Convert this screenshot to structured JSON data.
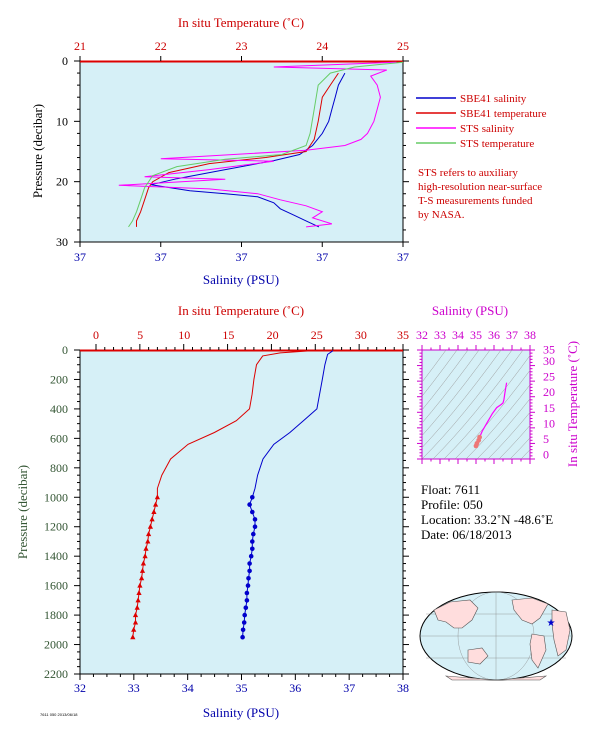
{
  "colors": {
    "plot_bg": "#d6f0f7",
    "salinity": "#0000cc",
    "temperature": "#dd0000",
    "sts_salinity": "#ff00ff",
    "sts_temperature": "#66cc66",
    "ts_axis": "#cc00cc",
    "pressure_axis": "#335533",
    "float_star": "#0000cc"
  },
  "info": {
    "float": "Float:  7611",
    "profile": "Profile:  050",
    "location": "Location:  33.2˚N  -48.6˚E",
    "date": "Date:  06/18/2013"
  },
  "note": [
    "STS refers to auxiliary",
    "high-resolution near-surface",
    "T-S measurements funded",
    "by NASA."
  ],
  "footer": "7611 050 2013/06/18",
  "chart_data": [
    {
      "id": "near-surface",
      "type": "line",
      "title": "In situ Temperature (˚C)",
      "xlabel": "Salinity (PSU)",
      "ylabel": "Pressure (decibar)",
      "top_xlabel": "In situ Temperature (˚C)",
      "top_ticks": [
        "21",
        "22",
        "23",
        "24",
        "25"
      ],
      "top_xlim": [
        21,
        25
      ],
      "bottom_ticks": [
        "37",
        "37",
        "37",
        "37",
        "37"
      ],
      "y_ticks": [
        "0",
        "10",
        "20",
        "30"
      ],
      "ylim": [
        0,
        30
      ],
      "grid": false,
      "legend_position": "right",
      "legend": [
        "SBE41 salinity",
        "SBE41 temperature",
        "STS salinity",
        "STS temperature"
      ],
      "series": [
        {
          "name": "SBE41 salinity",
          "axis": "bottom",
          "points": [
            [
              0.82,
              2
            ],
            [
              0.8,
              4
            ],
            [
              0.79,
              6
            ],
            [
              0.78,
              8
            ],
            [
              0.77,
              10
            ],
            [
              0.75,
              12
            ],
            [
              0.72,
              14
            ],
            [
              0.68,
              15.5
            ],
            [
              0.6,
              16.5
            ],
            [
              0.45,
              18
            ],
            [
              0.3,
              19.5
            ],
            [
              0.22,
              20.5
            ],
            [
              0.34,
              21.5
            ],
            [
              0.45,
              22
            ],
            [
              0.55,
              22.5
            ],
            [
              0.6,
              23.5
            ],
            [
              0.62,
              24.5
            ],
            [
              0.66,
              25.5
            ],
            [
              0.7,
              26.5
            ],
            [
              0.74,
              27.5
            ]
          ]
        },
        {
          "name": "SBE41 temperature",
          "axis": "top",
          "points": [
            [
              24.2,
              2
            ],
            [
              24.1,
              4
            ],
            [
              24.0,
              6
            ],
            [
              23.95,
              10
            ],
            [
              23.9,
              13
            ],
            [
              23.8,
              15
            ],
            [
              23.3,
              16
            ],
            [
              22.6,
              17
            ],
            [
              22.1,
              18.5
            ],
            [
              21.9,
              20
            ],
            [
              21.85,
              21
            ],
            [
              21.8,
              23
            ],
            [
              21.75,
              25
            ],
            [
              21.7,
              26.5
            ],
            [
              21.7,
              27.5
            ]
          ]
        },
        {
          "name": "STS salinity",
          "axis": "bottom",
          "points": [
            [
              0.98,
              0.2
            ],
            [
              0.6,
              1.0
            ],
            [
              0.95,
              1.5
            ],
            [
              0.9,
              2.5
            ],
            [
              0.92,
              4
            ],
            [
              0.93,
              6
            ],
            [
              0.92,
              8
            ],
            [
              0.91,
              10
            ],
            [
              0.9,
              11
            ],
            [
              0.89,
              12
            ],
            [
              0.87,
              13
            ],
            [
              0.82,
              14
            ],
            [
              0.7,
              14.8
            ],
            [
              0.25,
              16.2
            ],
            [
              0.6,
              16.6
            ],
            [
              0.4,
              18
            ],
            [
              0.2,
              19.2
            ],
            [
              0.45,
              19.6
            ],
            [
              0.12,
              20.6
            ],
            [
              0.4,
              21.2
            ],
            [
              0.55,
              22
            ],
            [
              0.62,
              23
            ],
            [
              0.7,
              24
            ],
            [
              0.75,
              25
            ],
            [
              0.72,
              26
            ],
            [
              0.78,
              27
            ],
            [
              0.7,
              27.5
            ]
          ]
        },
        {
          "name": "STS temperature",
          "axis": "top",
          "points": [
            [
              25.0,
              0.2
            ],
            [
              24.4,
              1
            ],
            [
              24.1,
              2
            ],
            [
              23.95,
              4
            ],
            [
              23.9,
              8
            ],
            [
              23.85,
              12
            ],
            [
              23.8,
              14
            ],
            [
              23.5,
              15.5
            ],
            [
              22.8,
              16.3
            ],
            [
              22.2,
              17.5
            ],
            [
              21.9,
              19
            ],
            [
              21.8,
              21
            ],
            [
              21.75,
              23
            ],
            [
              21.7,
              25
            ],
            [
              21.65,
              26.5
            ],
            [
              21.6,
              27.5
            ]
          ]
        }
      ]
    },
    {
      "id": "full-profile",
      "type": "line",
      "title": "In situ Temperature (˚C)",
      "xlabel": "Salinity (PSU)",
      "ylabel": "Pressure (decibar)",
      "top_xlabel": "In situ Temperature (˚C)",
      "top_ticks": [
        "0",
        "5",
        "10",
        "15",
        "20",
        "25",
        "30",
        "35"
      ],
      "top_xlim": [
        0,
        35
      ],
      "bottom_ticks": [
        "32",
        "33",
        "34",
        "35",
        "36",
        "37",
        "38"
      ],
      "xlim": [
        32,
        38
      ],
      "y_ticks": [
        "0",
        "200",
        "400",
        "600",
        "800",
        "1000",
        "1200",
        "1400",
        "1600",
        "1800",
        "2000",
        "2200"
      ],
      "ylim": [
        0,
        2200
      ],
      "grid": false,
      "series": [
        {
          "name": "Salinity",
          "axis": "bottom",
          "points": [
            [
              36.7,
              5
            ],
            [
              36.6,
              30
            ],
            [
              36.55,
              100
            ],
            [
              36.5,
              200
            ],
            [
              36.45,
              300
            ],
            [
              36.4,
              400
            ],
            [
              36.15,
              480
            ],
            [
              35.9,
              560
            ],
            [
              35.6,
              640
            ],
            [
              35.4,
              740
            ],
            [
              35.3,
              850
            ],
            [
              35.25,
              940
            ],
            [
              35.2,
              1000
            ],
            [
              35.15,
              1050
            ],
            [
              35.2,
              1100
            ],
            [
              35.25,
              1150
            ],
            [
              35.25,
              1200
            ],
            [
              35.22,
              1250
            ],
            [
              35.2,
              1300
            ],
            [
              35.2,
              1350
            ],
            [
              35.18,
              1400
            ],
            [
              35.15,
              1450
            ],
            [
              35.15,
              1500
            ],
            [
              35.13,
              1550
            ],
            [
              35.12,
              1600
            ],
            [
              35.1,
              1650
            ],
            [
              35.1,
              1700
            ],
            [
              35.08,
              1750
            ],
            [
              35.06,
              1800
            ],
            [
              35.05,
              1850
            ],
            [
              35.03,
              1900
            ],
            [
              35.02,
              1950
            ]
          ]
        },
        {
          "name": "Temperature",
          "axis": "top",
          "points": [
            [
              24.5,
              5
            ],
            [
              21.0,
              20
            ],
            [
              19.0,
              40
            ],
            [
              18.3,
              100
            ],
            [
              18.0,
              200
            ],
            [
              17.8,
              300
            ],
            [
              17.5,
              400
            ],
            [
              16.0,
              480
            ],
            [
              13.5,
              560
            ],
            [
              10.5,
              640
            ],
            [
              8.5,
              740
            ],
            [
              7.5,
              850
            ],
            [
              7.0,
              940
            ],
            [
              7.0,
              1000
            ],
            [
              6.8,
              1050
            ],
            [
              6.6,
              1100
            ],
            [
              6.4,
              1150
            ],
            [
              6.2,
              1200
            ],
            [
              6.0,
              1250
            ],
            [
              5.9,
              1300
            ],
            [
              5.7,
              1350
            ],
            [
              5.6,
              1400
            ],
            [
              5.4,
              1450
            ],
            [
              5.3,
              1500
            ],
            [
              5.2,
              1550
            ],
            [
              5.0,
              1600
            ],
            [
              4.9,
              1650
            ],
            [
              4.8,
              1700
            ],
            [
              4.7,
              1750
            ],
            [
              4.5,
              1800
            ],
            [
              4.5,
              1850
            ],
            [
              4.3,
              1900
            ],
            [
              4.2,
              1950
            ]
          ]
        }
      ]
    },
    {
      "id": "ts-diagram",
      "type": "line",
      "title": "Salinity (PSU)",
      "xlabel": "Salinity (PSU)",
      "ylabel": "In situ Temperature (˚C)",
      "x_ticks": [
        "32",
        "33",
        "34",
        "35",
        "36",
        "37",
        "38"
      ],
      "xlim": [
        32,
        38
      ],
      "y_ticks": [
        "0",
        "5",
        "10",
        "15",
        "20",
        "25",
        "30",
        "35"
      ],
      "ylim": [
        0,
        35
      ],
      "series": [
        {
          "name": "T-S",
          "points": [
            [
              35.0,
              4.2
            ],
            [
              35.05,
              5.0
            ],
            [
              35.15,
              6.0
            ],
            [
              35.2,
              7.0
            ],
            [
              35.35,
              9.0
            ],
            [
              35.6,
              11.5
            ],
            [
              35.9,
              14.5
            ],
            [
              36.15,
              16.5
            ],
            [
              36.4,
              17.5
            ],
            [
              36.5,
              18.0
            ],
            [
              36.55,
              19.0
            ],
            [
              36.6,
              21.0
            ],
            [
              36.7,
              24.5
            ]
          ]
        }
      ]
    }
  ]
}
